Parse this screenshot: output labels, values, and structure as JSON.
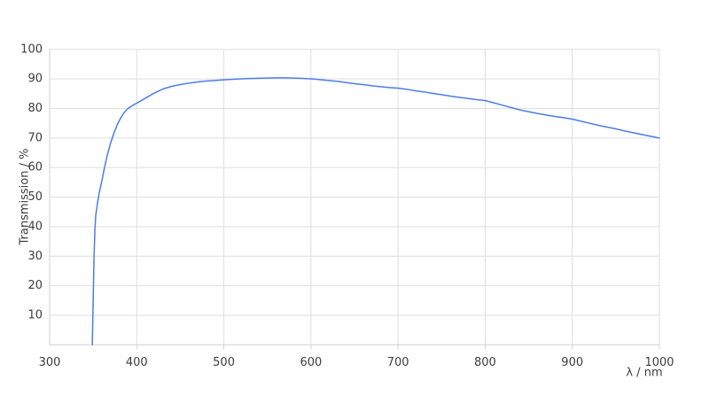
{
  "page": {
    "background": "#ffffff"
  },
  "chart_data": {
    "type": "line",
    "title": "",
    "xlabel": "λ / nm",
    "ylabel": "Transmission / %",
    "xlim": [
      300,
      1000
    ],
    "ylim": [
      0,
      100
    ],
    "x_ticks": [
      300,
      400,
      500,
      600,
      700,
      800,
      900,
      1000
    ],
    "y_ticks": [
      10,
      20,
      30,
      40,
      50,
      60,
      70,
      80,
      90,
      100
    ],
    "grid": true,
    "legend": "none",
    "colors": {
      "line": "#4b7de8",
      "grid": "#dedede",
      "axis": "#cfcfcf",
      "tick_label": "#3d3d3d"
    },
    "series": [
      {
        "name": "Transmission",
        "x": [
          349,
          350,
          351,
          352,
          353,
          355,
          357,
          360,
          363,
          366,
          370,
          374,
          378,
          382,
          386,
          390,
          395,
          400,
          410,
          420,
          430,
          440,
          450,
          460,
          470,
          480,
          490,
          500,
          510,
          520,
          530,
          540,
          550,
          560,
          570,
          580,
          590,
          600,
          610,
          620,
          630,
          640,
          650,
          660,
          670,
          680,
          690,
          700,
          710,
          720,
          730,
          740,
          750,
          760,
          770,
          780,
          790,
          800,
          810,
          820,
          830,
          840,
          850,
          860,
          870,
          880,
          890,
          900,
          910,
          920,
          930,
          940,
          950,
          960,
          970,
          980,
          990,
          1000
        ],
        "y": [
          0,
          15,
          30,
          39,
          44,
          48,
          51.5,
          55.5,
          60,
          64,
          68.3,
          71.8,
          74.8,
          77,
          78.8,
          80,
          81,
          81.8,
          83.5,
          85.2,
          86.6,
          87.5,
          88.1,
          88.6,
          89,
          89.3,
          89.5,
          89.7,
          89.9,
          90.05,
          90.15,
          90.25,
          90.3,
          90.4,
          90.4,
          90.3,
          90.2,
          90.05,
          89.8,
          89.5,
          89.2,
          88.8,
          88.4,
          88.1,
          87.7,
          87.4,
          87.1,
          86.9,
          86.5,
          86,
          85.6,
          85.1,
          84.7,
          84.2,
          83.8,
          83.4,
          83,
          82.7,
          81.9,
          81.1,
          80.3,
          79.5,
          78.9,
          78.3,
          77.8,
          77.3,
          76.9,
          76.4,
          75.7,
          75,
          74.3,
          73.7,
          73.1,
          72.4,
          71.8,
          71.2,
          70.6,
          70
        ]
      }
    ]
  }
}
